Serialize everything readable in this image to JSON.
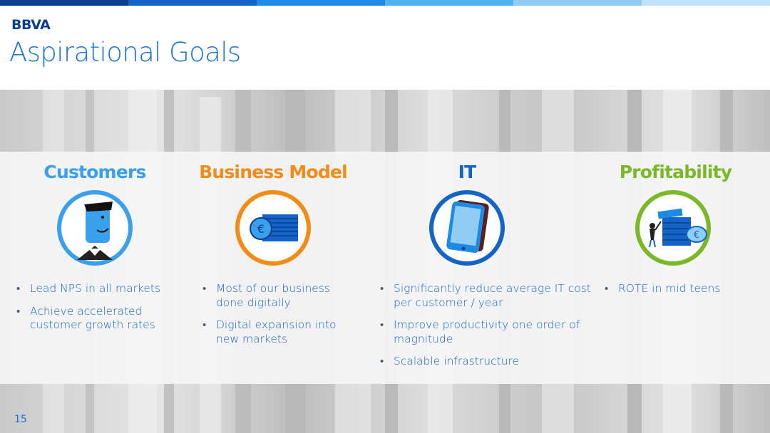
{
  "header": {
    "logo": "BBVA",
    "title": "Aspirational Goals",
    "bar_colors": [
      "#0a3e8f",
      "#1464c8",
      "#1f8ae6",
      "#4fb1f0",
      "#8fcdf5",
      "#bfe3fa"
    ]
  },
  "columns": [
    {
      "title": "Customers",
      "color": "#3aa0ec",
      "icon": "customer-person-icon",
      "bullets": [
        "Lead NPS in all markets",
        "Achieve accelerated customer growth rates"
      ]
    },
    {
      "title": "Business Model",
      "color": "#f28c18",
      "icon": "coins-stack-icon",
      "bullets": [
        "Most of our business done digitally",
        "Digital expansion into new markets"
      ]
    },
    {
      "title": "IT",
      "color": "#1464c8",
      "icon": "tablet-icon",
      "bullets": [
        "Significantly reduce average IT cost per customer / year",
        "Improve productivity one order of magnitude",
        "Scalable infrastructure"
      ]
    },
    {
      "title": "Profitability",
      "color": "#7ab828",
      "icon": "growing-coins-icon",
      "bullets": [
        "ROTE in mid teens"
      ]
    }
  ],
  "footer": {
    "page_number": "15"
  }
}
